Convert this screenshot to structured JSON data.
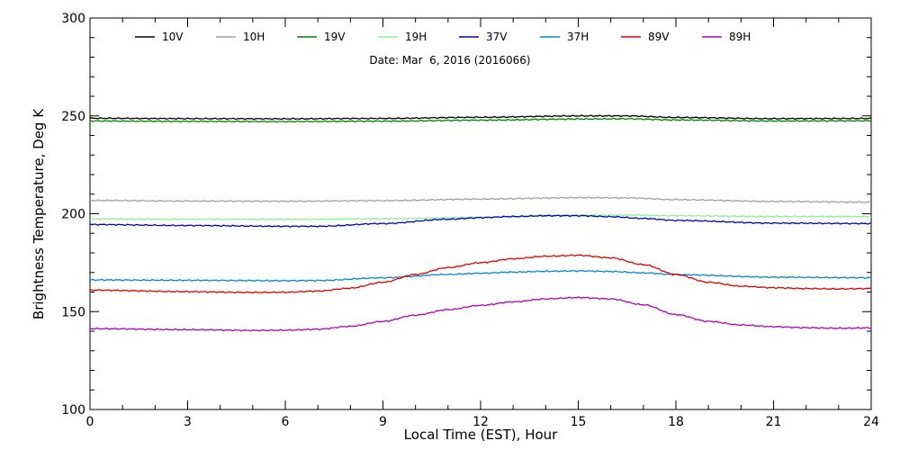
{
  "chart_data": {
    "type": "line",
    "xlabel": "Local Time (EST), Hour",
    "ylabel": "Brightness Temperature, Deg K",
    "annotation": "Date: Mar  6, 2016 (2016066)",
    "xlim": [
      0,
      24
    ],
    "ylim": [
      100,
      300
    ],
    "xticks": [
      0,
      3,
      6,
      9,
      12,
      15,
      18,
      21,
      24
    ],
    "yticks": [
      100,
      150,
      200,
      250,
      300
    ],
    "x_minor_step": 1,
    "y_minor_step": 10,
    "grid": false,
    "legend_position": "top",
    "series": [
      {
        "name": "10V",
        "color": "#000000",
        "x": [
          0,
          3,
          6,
          9,
          12,
          15,
          16.5,
          18,
          21,
          24
        ],
        "values": [
          248.8,
          248.6,
          248.5,
          248.7,
          249.3,
          250.0,
          250.0,
          249.2,
          248.6,
          248.7
        ]
      },
      {
        "name": "10H",
        "color": "#a0a0a0",
        "x": [
          0,
          3,
          6,
          9,
          12,
          15,
          16.5,
          18,
          21,
          24
        ],
        "values": [
          206.8,
          206.5,
          206.4,
          206.7,
          207.5,
          208.2,
          208.1,
          207.2,
          206.3,
          205.9
        ]
      },
      {
        "name": "19V",
        "color": "#008000",
        "x": [
          0,
          3,
          6,
          9,
          12,
          15,
          16.5,
          18,
          21,
          24
        ],
        "values": [
          247.4,
          247.2,
          247.1,
          247.3,
          247.8,
          248.4,
          248.5,
          247.9,
          247.4,
          247.5
        ]
      },
      {
        "name": "19H",
        "color": "#90ee90",
        "x": [
          0,
          3,
          6,
          9,
          12,
          15,
          16.5,
          18,
          21,
          24
        ],
        "values": [
          197.3,
          197.2,
          197.1,
          197.4,
          198.2,
          199.2,
          199.3,
          199.0,
          198.6,
          198.6
        ]
      },
      {
        "name": "37V",
        "color": "#0000c8",
        "x": [
          0,
          3,
          6,
          7,
          9,
          11,
          12,
          13,
          14,
          15,
          16,
          17,
          18,
          21,
          24
        ],
        "values": [
          194.5,
          194.0,
          193.6,
          193.6,
          195.0,
          197.2,
          198.0,
          198.6,
          199.0,
          199.0,
          198.5,
          197.6,
          196.6,
          195.2,
          195.0
        ]
      },
      {
        "name": "37H",
        "color": "#0088d0",
        "x": [
          0,
          3,
          6,
          7,
          9,
          11,
          12,
          13,
          14,
          15,
          16,
          17,
          18,
          21,
          24
        ],
        "values": [
          166.2,
          166.0,
          165.8,
          165.9,
          167.3,
          169.0,
          169.6,
          170.2,
          170.6,
          170.8,
          170.5,
          169.8,
          168.9,
          167.6,
          167.3
        ]
      },
      {
        "name": "89V",
        "color": "#e00000",
        "x": [
          0,
          3,
          5,
          6,
          7,
          8,
          9,
          10,
          11,
          12,
          13,
          14,
          15,
          16,
          17,
          18,
          19,
          20,
          21,
          22,
          23,
          24
        ],
        "values": [
          161.0,
          160.2,
          159.8,
          159.9,
          160.5,
          162.0,
          165.0,
          169.0,
          172.5,
          175.0,
          177.0,
          178.3,
          178.8,
          177.5,
          174.0,
          169.0,
          165.0,
          163.0,
          162.2,
          161.8,
          161.6,
          161.8
        ]
      },
      {
        "name": "89H",
        "color": "#b000b0",
        "x": [
          0,
          3,
          5,
          6,
          7,
          8,
          9,
          10,
          11,
          12,
          13,
          14,
          15,
          16,
          17,
          18,
          19,
          20,
          21,
          22,
          23,
          24
        ],
        "values": [
          141.3,
          140.8,
          140.4,
          140.5,
          141.0,
          142.5,
          145.0,
          148.2,
          151.0,
          153.2,
          155.0,
          156.5,
          157.2,
          156.5,
          153.5,
          148.5,
          145.0,
          143.2,
          142.3,
          141.8,
          141.5,
          141.7
        ]
      }
    ]
  }
}
